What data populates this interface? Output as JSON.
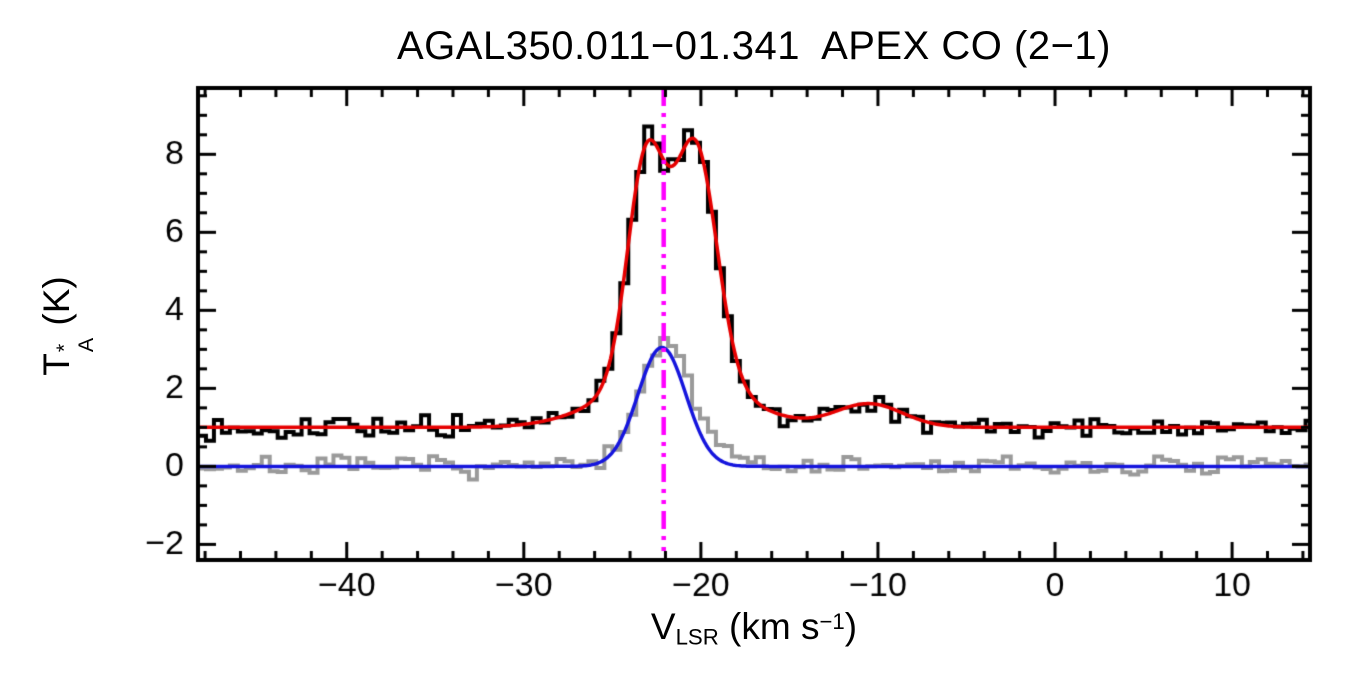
{
  "chart_data": {
    "type": "line",
    "title": "AGAL350.011−01.341  APEX CO (2−1)",
    "xlabel": {
      "letter": "V",
      "sub": "LSR",
      "unit_pre": " (km s",
      "sup": "−1",
      "unit_post": ")"
    },
    "ylabel": {
      "letter": "T",
      "sup": "*",
      "sub": "A",
      "unit": " (K)"
    },
    "xlim": [
      -48.4,
      14.4
    ],
    "ylim": [
      -2.4,
      9.7
    ],
    "x_major_ticks": [
      -40,
      -30,
      -20,
      -10,
      0,
      10
    ],
    "x_tick_labels": [
      "−40",
      "−30",
      "−20",
      "−10",
      "0",
      "10"
    ],
    "x_minor_step": 2,
    "y_major_ticks": [
      -2,
      0,
      2,
      4,
      6,
      8
    ],
    "y_tick_labels": [
      "−2",
      "0",
      "2",
      "4",
      "6",
      "8"
    ],
    "y_minor_step": 0.5,
    "bin_width": 0.45,
    "series": [
      {
        "name": "offset-spectrum-histogram",
        "style": "histogram",
        "color": "#9a9a9a",
        "line_width": 4,
        "baseline": 0.0,
        "noise_sigma": 0.12,
        "noise_seed": 7,
        "components": [
          {
            "amp": 3.0,
            "center": -22.1,
            "sigma": 1.35
          },
          {
            "amp": 0.5,
            "center": -19.6,
            "sigma": 1.6
          }
        ]
      },
      {
        "name": "offset-gaussian-fit",
        "style": "smooth",
        "color": "#1515dd",
        "line_width": 3.5,
        "baseline": 0.0,
        "components": [
          {
            "amp": 3.05,
            "center": -22.2,
            "sigma": 1.35
          }
        ]
      },
      {
        "name": "observed-spectrum-histogram",
        "style": "histogram",
        "color": "#000000",
        "line_width": 4,
        "baseline": 1.0,
        "noise_sigma": 0.13,
        "noise_seed": 13,
        "components": [
          {
            "amp": 5.6,
            "center": -23.1,
            "sigma": 1.05
          },
          {
            "amp": 5.9,
            "center": -20.3,
            "sigma": 1.2
          },
          {
            "amp": 1.4,
            "center": -21.6,
            "sigma": 3.5
          },
          {
            "amp": 0.6,
            "center": -10.5,
            "sigma": 1.9
          }
        ]
      },
      {
        "name": "total-gaussian-fit",
        "style": "smooth",
        "color": "#e60000",
        "line_width": 3.5,
        "baseline": 1.0,
        "components": [
          {
            "amp": 5.6,
            "center": -23.1,
            "sigma": 1.05
          },
          {
            "amp": 5.9,
            "center": -20.3,
            "sigma": 1.2
          },
          {
            "amp": 1.4,
            "center": -21.6,
            "sigma": 3.5
          },
          {
            "amp": 0.6,
            "center": -10.5,
            "sigma": 1.9
          }
        ]
      }
    ],
    "vline": {
      "x": -22.1,
      "color": "#ff00ff",
      "style": "dash-dot-dot",
      "width": 4.5
    },
    "measured_features": {
      "main_peak": {
        "v_lsr": -22.8,
        "t_a_K": 8.1
      },
      "secondary_peak": {
        "v_lsr": -20.4,
        "t_a_K": 7.9
      },
      "central_dip": {
        "v_lsr": -21.9,
        "t_a_K": 7.4
      },
      "offset_spectrum_peak": {
        "v_lsr": -22.3,
        "t_a_K": 3.6
      },
      "weak_component": {
        "v_lsr": -10.5,
        "t_a_K": 1.6
      },
      "systemic_velocity_marker": -22.1,
      "observed_baseline_K": 1.0,
      "offset_baseline_K": 0.0
    }
  }
}
